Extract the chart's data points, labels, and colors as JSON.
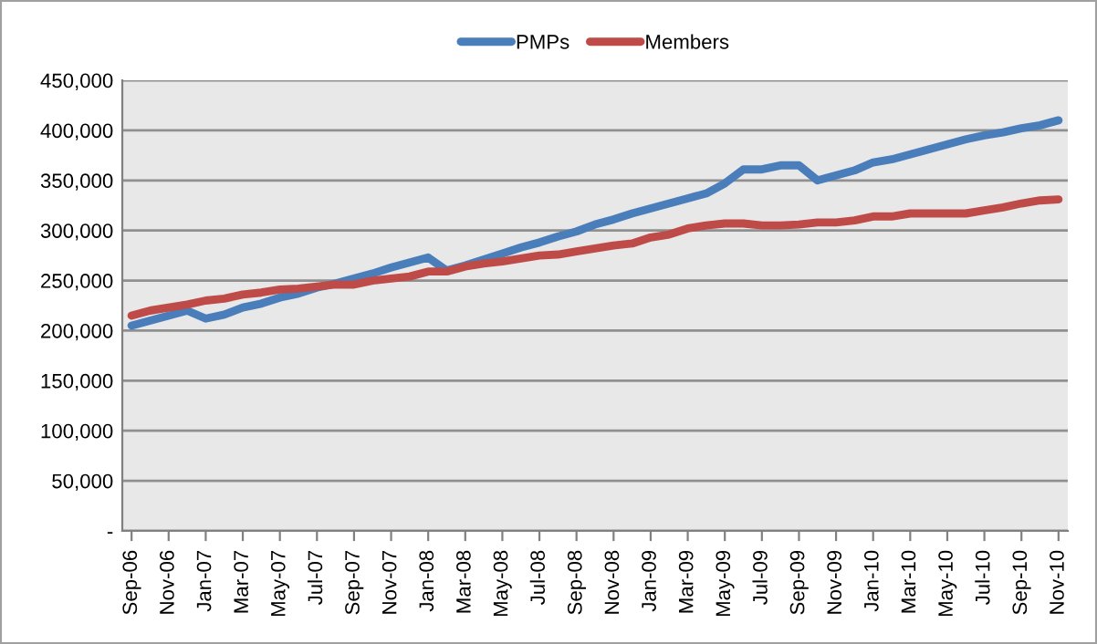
{
  "chart_data": {
    "type": "line",
    "categories": [
      "Sep-06",
      null,
      "Nov-06",
      null,
      "Jan-07",
      null,
      "Mar-07",
      null,
      "May-07",
      null,
      "Jul-07",
      null,
      "Sep-07",
      null,
      "Nov-07",
      null,
      "Jan-08",
      null,
      "Mar-08",
      null,
      "May-08",
      null,
      "Jul-08",
      null,
      "Sep-08",
      null,
      "Nov-08",
      null,
      "Jan-09",
      null,
      "Mar-09",
      null,
      "May-09",
      null,
      "Jul-09",
      null,
      "Sep-09",
      null,
      "Nov-09",
      null,
      "Jan-10",
      null,
      "Mar-10",
      null,
      "May-10",
      null,
      "Jul-10",
      null,
      "Sep-10",
      null,
      "Nov-10"
    ],
    "series": [
      {
        "name": "PMPs",
        "color": "#4a7ebb",
        "values": [
          205000,
          210000,
          215000,
          220000,
          212000,
          216000,
          223000,
          227000,
          233000,
          237000,
          243000,
          247000,
          252000,
          257000,
          263000,
          268000,
          273000,
          260000,
          265000,
          271000,
          277000,
          283000,
          288000,
          294000,
          299000,
          306000,
          311000,
          317000,
          322000,
          327000,
          332000,
          337000,
          347000,
          361000,
          361000,
          365000,
          365000,
          350000,
          355000,
          360000,
          368000,
          371000,
          376000,
          381000,
          386000,
          391000,
          395000,
          398000,
          402000,
          405000,
          410000
        ]
      },
      {
        "name": "Members",
        "color": "#be4b48",
        "values": [
          215000,
          220000,
          223000,
          226000,
          230000,
          232000,
          236000,
          238000,
          241000,
          242000,
          244000,
          246000,
          246000,
          250000,
          252000,
          254000,
          259000,
          259000,
          264000,
          267000,
          269000,
          272000,
          275000,
          276000,
          279000,
          282000,
          285000,
          287000,
          293000,
          296000,
          302000,
          305000,
          307000,
          307000,
          305000,
          305000,
          306000,
          308000,
          308000,
          310000,
          314000,
          314000,
          317000,
          317000,
          317000,
          317000,
          320000,
          323000,
          327000,
          330000,
          331000
        ]
      }
    ],
    "ylim": [
      0,
      450000
    ],
    "yticks": [
      {
        "value": 0,
        "label": "-"
      },
      {
        "value": 50000,
        "label": "50,000"
      },
      {
        "value": 100000,
        "label": "100,000"
      },
      {
        "value": 150000,
        "label": "150,000"
      },
      {
        "value": 200000,
        "label": "200,000"
      },
      {
        "value": 250000,
        "label": "250,000"
      },
      {
        "value": 300000,
        "label": "300,000"
      },
      {
        "value": 350000,
        "label": "350,000"
      },
      {
        "value": 400000,
        "label": "400,000"
      },
      {
        "value": 450000,
        "label": "450,000"
      }
    ],
    "grid": "y",
    "legend": "top",
    "marker": "none",
    "line_style": "solid"
  }
}
